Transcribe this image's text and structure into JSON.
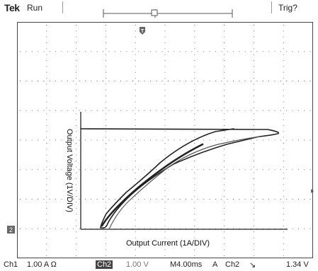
{
  "header": {
    "brand": "Tek",
    "run_state": "Run",
    "trigger_status": "Trig?"
  },
  "markers": {
    "trigger_position": "T",
    "ch2_ground": "2"
  },
  "plot": {
    "y_label": "Output Voltage (1V/DIV)",
    "x_label": "Output Current (1A/DIV)"
  },
  "status": {
    "ch1": "Ch1",
    "ch1_scale": "1.00 A Ω",
    "ch2_box": "Ch2",
    "ch2_scale": "1.00 V",
    "timebase": "M4.00ms",
    "trigger_mode": "A",
    "trigger_source": "Ch2",
    "trigger_slope": "↘",
    "trigger_level": "1.34 V"
  },
  "colors": {
    "trace": "#222222",
    "grid_dots": "#777777"
  }
}
